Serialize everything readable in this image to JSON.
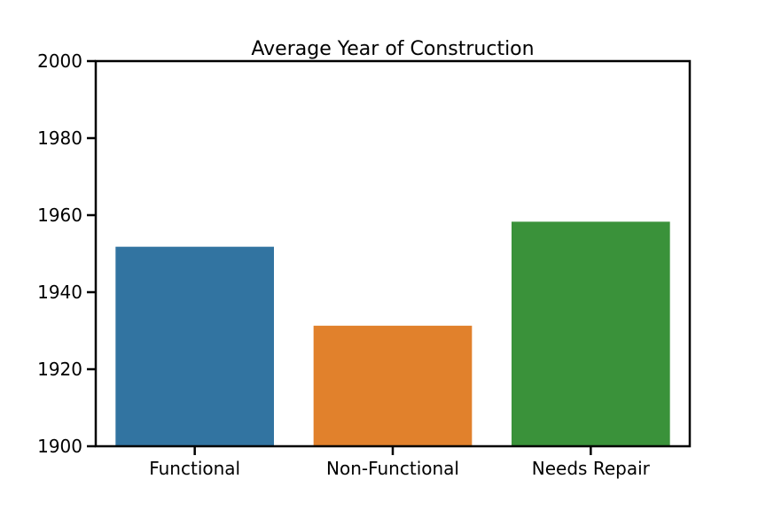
{
  "chart_data": {
    "type": "bar",
    "title": "Average Year of Construction",
    "xlabel": "",
    "ylabel": "",
    "categories": [
      "Functional",
      "Non-Functional",
      "Needs Repair"
    ],
    "values": [
      1951.8,
      1931.3,
      1958.3
    ],
    "colors": [
      "#3274a1",
      "#e1812c",
      "#3a923a"
    ],
    "ylim": [
      1900,
      2000
    ],
    "yticks": [
      1900,
      1920,
      1940,
      1960,
      1980,
      2000
    ],
    "grid": false,
    "legend": "none"
  }
}
